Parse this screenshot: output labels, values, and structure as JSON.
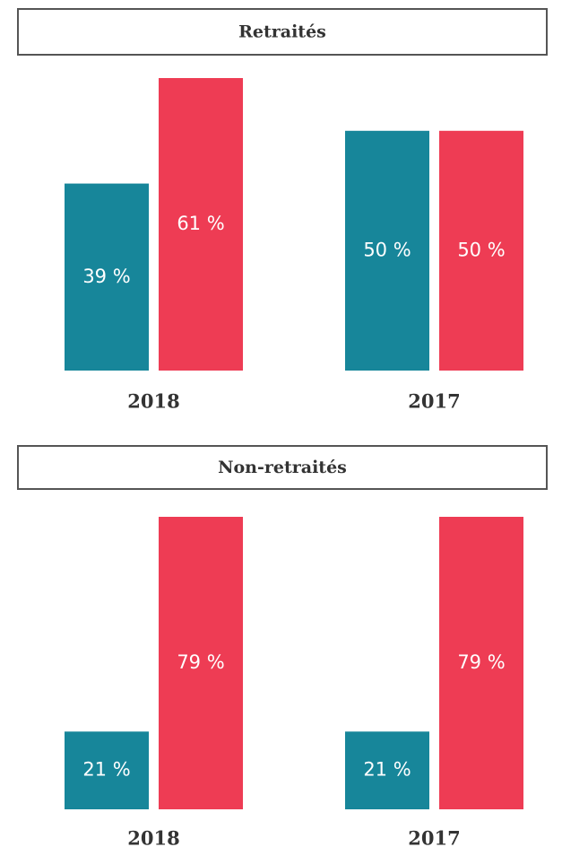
{
  "chart_data": [
    {
      "type": "bar",
      "title": "Retraités",
      "categories": [
        "2018",
        "2017"
      ],
      "series": [
        {
          "color": "#17869a",
          "values": [
            39,
            50
          ],
          "value_labels": [
            "39 %",
            "50 %"
          ]
        },
        {
          "color": "#ee3c54",
          "values": [
            61,
            50
          ],
          "value_labels": [
            "61 %",
            "50 %"
          ]
        }
      ]
    },
    {
      "type": "bar",
      "title": "Non-retraités",
      "categories": [
        "2018",
        "2017"
      ],
      "series": [
        {
          "color": "#17869a",
          "values": [
            21,
            21
          ],
          "value_labels": [
            "21 %",
            "21 %"
          ]
        },
        {
          "color": "#ee3c54",
          "values": [
            79,
            79
          ],
          "value_labels": [
            "79 %",
            "79 %"
          ]
        }
      ]
    }
  ]
}
